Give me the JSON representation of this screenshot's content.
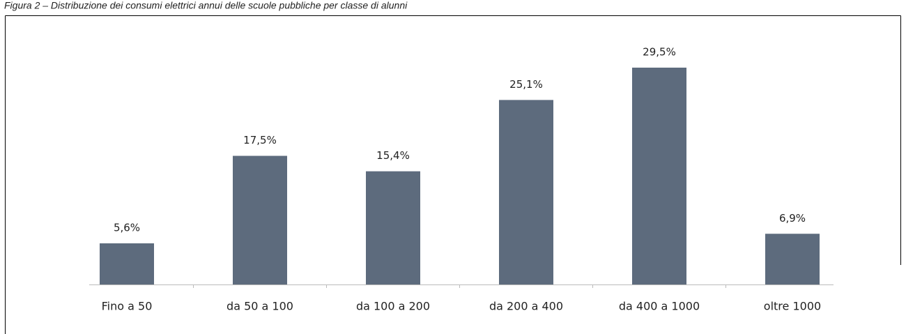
{
  "chart_data": {
    "type": "bar",
    "title": "Figura 2 – Distribuzione dei consumi elettrici annui delle scuole pubbliche per classe di alunni",
    "categories": [
      "Fino a 50",
      "da 50 a 100",
      "da 100 a 200",
      "da 200 a 400",
      "da 400 a 1000",
      "oltre 1000"
    ],
    "values": [
      5.6,
      17.5,
      15.4,
      25.1,
      29.5,
      6.9
    ],
    "value_labels": [
      "5,6%",
      "17,5%",
      "15,4%",
      "25,1%",
      "29,5%",
      "6,9%"
    ],
    "color": "#5d6b7d"
  }
}
